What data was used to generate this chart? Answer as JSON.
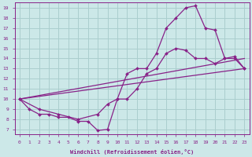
{
  "background_color": "#cce8e8",
  "grid_color": "#aacece",
  "line_color": "#882288",
  "marker_color": "#882288",
  "xlabel": "Windchill (Refroidissement éolien,°C)",
  "xlim": [
    -0.5,
    23.5
  ],
  "ylim": [
    6.5,
    19.5
  ],
  "xticks": [
    0,
    1,
    2,
    3,
    4,
    5,
    6,
    7,
    8,
    9,
    10,
    11,
    12,
    13,
    14,
    15,
    16,
    17,
    18,
    19,
    20,
    21,
    22,
    23
  ],
  "yticks": [
    7,
    8,
    9,
    10,
    11,
    12,
    13,
    14,
    15,
    16,
    17,
    18,
    19
  ],
  "curve1_x": [
    0,
    1,
    2,
    3,
    4,
    5,
    6,
    7,
    8,
    9,
    10,
    11,
    12,
    13,
    14,
    15,
    16,
    17,
    18,
    19,
    20,
    21,
    22,
    23
  ],
  "curve1_y": [
    10,
    9,
    8.5,
    8.5,
    8.2,
    8.2,
    7.8,
    7.8,
    6.9,
    7.0,
    10.0,
    12.5,
    13.0,
    13.0,
    14.5,
    17.0,
    18.0,
    19.0,
    19.2,
    17.0,
    16.8,
    14.0,
    14.0,
    13.0
  ],
  "curve2_x": [
    0,
    2,
    4,
    6,
    8,
    9,
    10,
    11,
    12,
    13,
    14,
    15,
    16,
    17,
    18,
    19,
    20,
    21,
    22,
    23
  ],
  "curve2_y": [
    10,
    9,
    8.5,
    8.0,
    8.5,
    9.5,
    10.0,
    10.0,
    11.0,
    12.5,
    13.0,
    14.5,
    15.0,
    14.8,
    14.0,
    14.0,
    13.5,
    14.0,
    14.2,
    13.0
  ],
  "line1_x": [
    0,
    23
  ],
  "line1_y": [
    10,
    13
  ],
  "line2_x": [
    0,
    23
  ],
  "line2_y": [
    10,
    14
  ]
}
